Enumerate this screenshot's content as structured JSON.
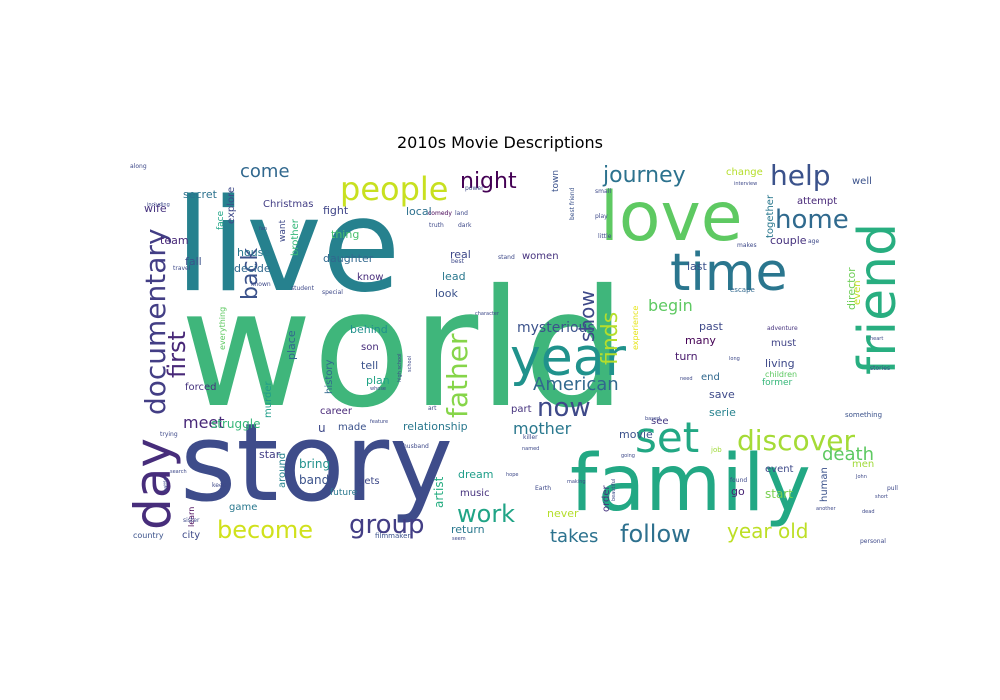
{
  "figure": {
    "title": "2010s Movie Descriptions"
  },
  "word_cloud": {
    "words": [
      {
        "text": "world",
        "color": "#3fb67b"
      },
      {
        "text": "live",
        "color": "#26818e"
      },
      {
        "text": "story",
        "color": "#3e4c8a"
      },
      {
        "text": "family",
        "color": "#22a884"
      },
      {
        "text": "love",
        "color": "#5ec962"
      },
      {
        "text": "time",
        "color": "#2a768e"
      },
      {
        "text": "friend",
        "color": "#28ae80"
      },
      {
        "text": "year",
        "color": "#20928c"
      },
      {
        "text": "day",
        "color": "#472d7b"
      },
      {
        "text": "documentary",
        "color": "#433e85"
      },
      {
        "text": "set",
        "color": "#22a884"
      },
      {
        "text": "discover",
        "color": "#a5db36"
      },
      {
        "text": "people",
        "color": "#c8e020"
      },
      {
        "text": "help",
        "color": "#3b528b"
      },
      {
        "text": "home",
        "color": "#306a8e"
      },
      {
        "text": "father",
        "color": "#86d549"
      },
      {
        "text": "now",
        "color": "#3e4989"
      },
      {
        "text": "group",
        "color": "#433e85"
      },
      {
        "text": "become",
        "color": "#d0e11c"
      },
      {
        "text": "follow",
        "color": "#2d708e"
      },
      {
        "text": "work",
        "color": "#20a486"
      },
      {
        "text": "journey",
        "color": "#2c728e"
      },
      {
        "text": "night",
        "color": "#440154"
      },
      {
        "text": "first",
        "color": "#482878"
      },
      {
        "text": "back",
        "color": "#3b528b"
      },
      {
        "text": "finds",
        "color": "#b5de2b"
      },
      {
        "text": "show",
        "color": "#3e4989"
      },
      {
        "text": "American",
        "color": "#31688e"
      },
      {
        "text": "year old",
        "color": "#bddf26"
      },
      {
        "text": "takes",
        "color": "#2c728e"
      },
      {
        "text": "death",
        "color": "#5ec962"
      },
      {
        "text": "come",
        "color": "#31688e"
      },
      {
        "text": "meet",
        "color": "#482878"
      },
      {
        "text": "mother",
        "color": "#2a788e"
      },
      {
        "text": "begin",
        "color": "#5ec962"
      },
      {
        "text": "mysterious",
        "color": "#3b528b"
      },
      {
        "text": "relationship",
        "color": "#2a788e"
      },
      {
        "text": "struggle",
        "color": "#35b779"
      },
      {
        "text": "bring",
        "color": "#21918c"
      },
      {
        "text": "band",
        "color": "#3b528b"
      },
      {
        "text": "artist",
        "color": "#26ad81"
      },
      {
        "text": "dream",
        "color": "#1f9e89"
      },
      {
        "text": "music",
        "color": "#46327e"
      },
      {
        "text": "return",
        "color": "#2a788e"
      },
      {
        "text": "never",
        "color": "#b5de2b"
      },
      {
        "text": "order",
        "color": "#46337e"
      },
      {
        "text": "movie",
        "color": "#3b528b"
      },
      {
        "text": "event",
        "color": "#3e4a89"
      },
      {
        "text": "start",
        "color": "#7ad151"
      },
      {
        "text": "go",
        "color": "#482475"
      },
      {
        "text": "human",
        "color": "#3b528b"
      },
      {
        "text": "turn",
        "color": "#481a6c"
      },
      {
        "text": "past",
        "color": "#3e4989"
      },
      {
        "text": "must",
        "color": "#414487"
      },
      {
        "text": "living",
        "color": "#3e4989"
      },
      {
        "text": "end",
        "color": "#31688e"
      },
      {
        "text": "save",
        "color": "#3e4a89"
      },
      {
        "text": "serie",
        "color": "#26828e"
      },
      {
        "text": "see",
        "color": "#443983"
      },
      {
        "text": "many",
        "color": "#440154"
      },
      {
        "text": "last",
        "color": "#3b528b"
      },
      {
        "text": "couple",
        "color": "#46327e"
      },
      {
        "text": "together",
        "color": "#2a788e"
      },
      {
        "text": "director",
        "color": "#6ece58"
      },
      {
        "text": "change",
        "color": "#b5de2b"
      },
      {
        "text": "attempt",
        "color": "#482878"
      },
      {
        "text": "well",
        "color": "#3b528b"
      },
      {
        "text": "men",
        "color": "#a0da39"
      },
      {
        "text": "even",
        "color": "#c2df23"
      },
      {
        "text": "former",
        "color": "#35b779"
      },
      {
        "text": "children",
        "color": "#5ec962"
      },
      {
        "text": "women",
        "color": "#46327e"
      },
      {
        "text": "lead",
        "color": "#2a788e"
      },
      {
        "text": "look",
        "color": "#3b528b"
      },
      {
        "text": "real",
        "color": "#3e4989"
      },
      {
        "text": "know",
        "color": "#472d7b"
      },
      {
        "text": "daughter",
        "color": "#31688e"
      },
      {
        "text": "thing",
        "color": "#4ac16d"
      },
      {
        "text": "fight",
        "color": "#404588"
      },
      {
        "text": "local",
        "color": "#2d708e"
      },
      {
        "text": "son",
        "color": "#472d7b"
      },
      {
        "text": "tell",
        "color": "#3b528b"
      },
      {
        "text": "plan",
        "color": "#20a486"
      },
      {
        "text": "behind",
        "color": "#21918c"
      },
      {
        "text": "history",
        "color": "#31688e"
      },
      {
        "text": "career",
        "color": "#482878"
      },
      {
        "text": "made",
        "color": "#3b528b"
      },
      {
        "text": "u",
        "color": "#3e4989"
      },
      {
        "text": "part",
        "color": "#46337e"
      },
      {
        "text": "gets",
        "color": "#3e4989"
      },
      {
        "text": "star",
        "color": "#433e85"
      },
      {
        "text": "around",
        "color": "#26828e"
      },
      {
        "text": "future",
        "color": "#2a788e"
      },
      {
        "text": "game",
        "color": "#2a788e"
      },
      {
        "text": "city",
        "color": "#3e4a89"
      },
      {
        "text": "place",
        "color": "#31688e"
      },
      {
        "text": "murder",
        "color": "#1f9e89"
      },
      {
        "text": "brother",
        "color": "#35b779"
      },
      {
        "text": "house",
        "color": "#2a788e"
      },
      {
        "text": "decide",
        "color": "#31688e"
      },
      {
        "text": "fall",
        "color": "#3b528b"
      },
      {
        "text": "team",
        "color": "#482878"
      },
      {
        "text": "wife",
        "color": "#46327e"
      },
      {
        "text": "secret",
        "color": "#2c728e"
      },
      {
        "text": "Christmas",
        "color": "#433e85"
      },
      {
        "text": "explore",
        "color": "#3e4989"
      },
      {
        "text": "face",
        "color": "#20a486"
      },
      {
        "text": "want",
        "color": "#3e4989"
      },
      {
        "text": "forced",
        "color": "#46337e"
      },
      {
        "text": "learn",
        "color": "#440154"
      },
      {
        "text": "country",
        "color": "#3b528b"
      },
      {
        "text": "experience",
        "color": "#e5e419"
      },
      {
        "text": "town",
        "color": "#3b528b"
      },
      {
        "text": "everything",
        "color": "#5ec962"
      },
      {
        "text": "filmmaker",
        "color": "#3b528b"
      },
      {
        "text": "escape",
        "color": "#31688e"
      },
      {
        "text": "adventure",
        "color": "#46337e"
      },
      {
        "text": "something",
        "color": "#3b528b"
      },
      {
        "text": "stories",
        "color": "#3e4989"
      },
      {
        "text": "job",
        "color": "#a0da39"
      },
      {
        "text": "found",
        "color": "#3e4989"
      },
      {
        "text": "power",
        "color": "#3e4989"
      },
      {
        "text": "comedy",
        "color": "#440154"
      },
      {
        "text": "land",
        "color": "#3e4989"
      },
      {
        "text": "best",
        "color": "#3e4989"
      },
      {
        "text": "best friend",
        "color": "#3b528b"
      },
      {
        "text": "small",
        "color": "#3e4989"
      },
      {
        "text": "play",
        "color": "#3e4989"
      },
      {
        "text": "truth",
        "color": "#3e4989"
      },
      {
        "text": "dark",
        "color": "#3e4989"
      },
      {
        "text": "stand",
        "color": "#3e4989"
      },
      {
        "text": "little",
        "color": "#3e4989"
      },
      {
        "text": "makes",
        "color": "#3e4989"
      },
      {
        "text": "interview",
        "color": "#3e4989"
      },
      {
        "text": "age",
        "color": "#3e4989"
      },
      {
        "text": "student",
        "color": "#3e4989"
      },
      {
        "text": "known",
        "color": "#3e4989"
      },
      {
        "text": "special",
        "color": "#3e4989"
      },
      {
        "text": "travel",
        "color": "#3e4989"
      },
      {
        "text": "character",
        "color": "#3e4989"
      },
      {
        "text": "along",
        "color": "#3e4989"
      },
      {
        "text": "including",
        "color": "#3e4989"
      },
      {
        "text": "fan",
        "color": "#3e4989"
      },
      {
        "text": "battle",
        "color": "#3e4989"
      },
      {
        "text": "keep",
        "color": "#3e4989"
      },
      {
        "text": "sister",
        "color": "#3e4989"
      },
      {
        "text": "search",
        "color": "#3e4989"
      },
      {
        "text": "trying",
        "color": "#3e4989"
      },
      {
        "text": "feature",
        "color": "#3e4989"
      },
      {
        "text": "husband",
        "color": "#3e4989"
      },
      {
        "text": "killer",
        "color": "#3e4989"
      },
      {
        "text": "named",
        "color": "#3e4989"
      },
      {
        "text": "hope",
        "color": "#3e4989"
      },
      {
        "text": "Earth",
        "color": "#3e4989"
      },
      {
        "text": "making",
        "color": "#3e4989"
      },
      {
        "text": "going",
        "color": "#3e4989"
      },
      {
        "text": "beautiful",
        "color": "#3e4989"
      },
      {
        "text": "seem",
        "color": "#3e4989"
      },
      {
        "text": "another",
        "color": "#3e4989"
      },
      {
        "text": "John",
        "color": "#3e4989"
      },
      {
        "text": "dead",
        "color": "#3e4989"
      },
      {
        "text": "short",
        "color": "#3e4989"
      },
      {
        "text": "personal",
        "color": "#3e4989"
      },
      {
        "text": "pull",
        "color": "#3e4989"
      },
      {
        "text": "heart",
        "color": "#3e4989"
      },
      {
        "text": "high school",
        "color": "#3e4989"
      },
      {
        "text": "school",
        "color": "#3e4989"
      },
      {
        "text": "whose",
        "color": "#3e4989"
      },
      {
        "text": "art",
        "color": "#3e4989"
      },
      {
        "text": "need",
        "color": "#3e4989"
      },
      {
        "text": "long",
        "color": "#3e4989"
      },
      {
        "text": "based",
        "color": "#3e4989"
      }
    ]
  }
}
